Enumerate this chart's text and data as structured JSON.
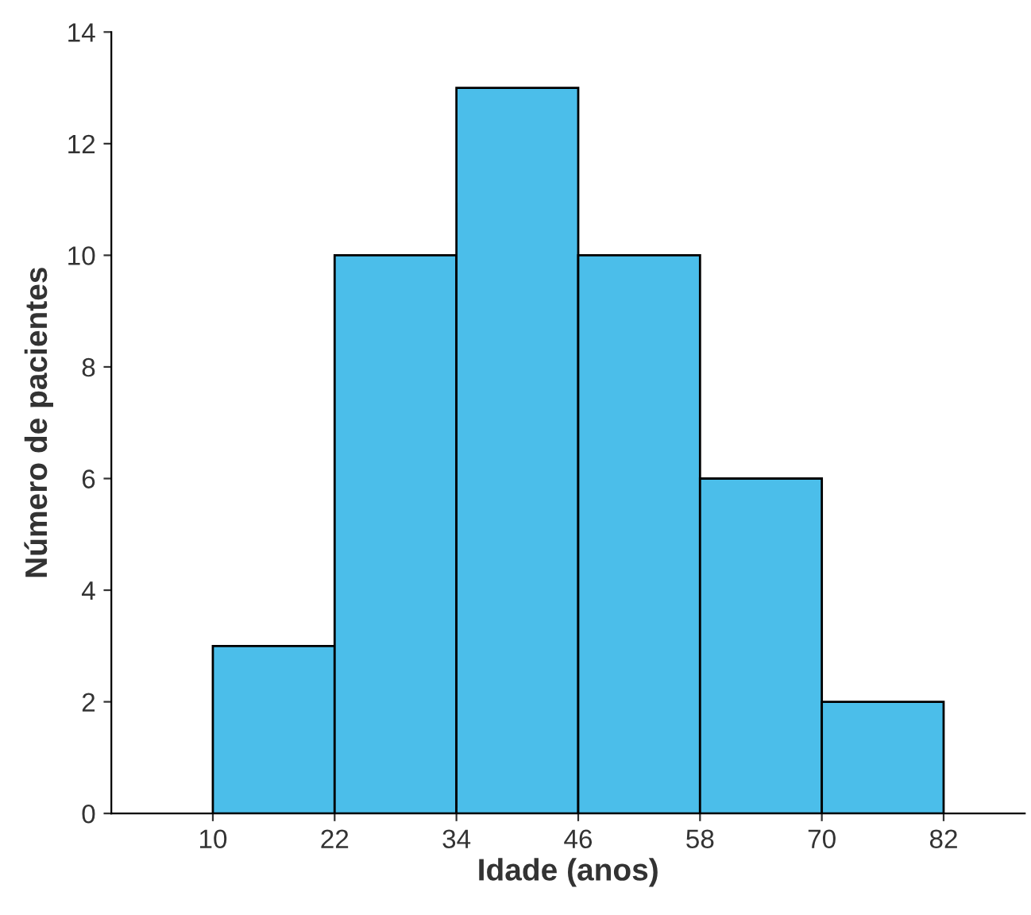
{
  "chart_data": {
    "type": "histogram",
    "xlabel": "Idade (anos)",
    "ylabel": "Número de pacientes",
    "bins": [
      10,
      22,
      34,
      46,
      58,
      70,
      82
    ],
    "values": [
      3,
      10,
      13,
      10,
      6,
      2
    ],
    "color": "#4bbeea",
    "xlim": [
      0,
      90
    ],
    "ylim": [
      0,
      14
    ],
    "xticks": [
      10,
      22,
      34,
      46,
      58,
      70,
      82
    ],
    "yticks": [
      0,
      2,
      4,
      6,
      8,
      10,
      12,
      14
    ]
  }
}
